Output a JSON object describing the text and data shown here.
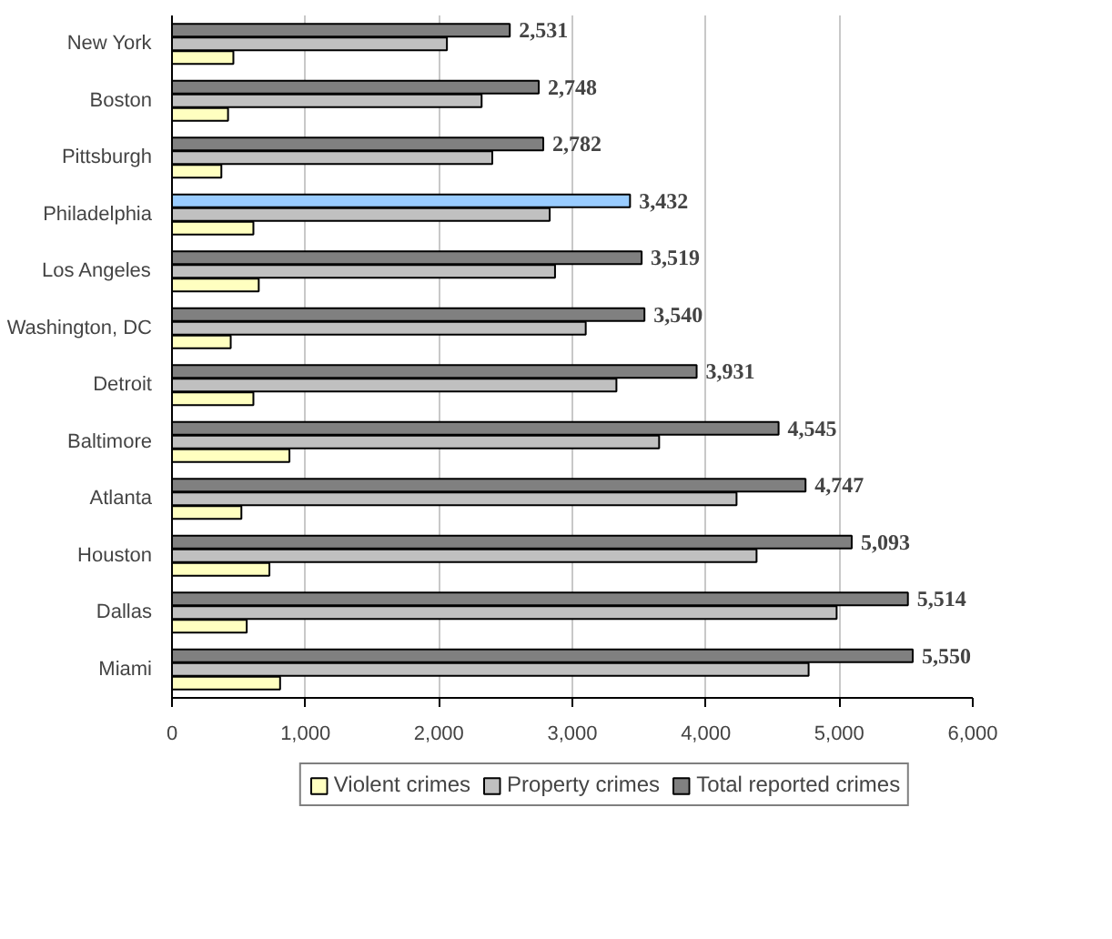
{
  "chart_data": {
    "type": "bar",
    "orientation": "horizontal",
    "categories": [
      "New York",
      "Boston",
      "Pittsburgh",
      "Philadelphia",
      "Los Angeles",
      "Washington, DC",
      "Detroit",
      "Baltimore",
      "Atlanta",
      "Houston",
      "Dallas",
      "Miami"
    ],
    "series": [
      {
        "name": "Violent crimes",
        "color": "#ffffc0",
        "values": [
          460,
          420,
          370,
          610,
          650,
          440,
          610,
          880,
          520,
          730,
          560,
          810
        ]
      },
      {
        "name": "Property crimes",
        "color": "#c0c0c0",
        "values": [
          2060,
          2320,
          2400,
          2830,
          2870,
          3100,
          3330,
          3650,
          4230,
          4380,
          4980,
          4770
        ]
      },
      {
        "name": "Total reported crimes",
        "color": "#808080",
        "colors": [
          "#808080",
          "#808080",
          "#808080",
          "#99ccff",
          "#808080",
          "#808080",
          "#808080",
          "#808080",
          "#808080",
          "#808080",
          "#808080",
          "#808080"
        ],
        "values": [
          2531,
          2748,
          2782,
          3432,
          3519,
          3540,
          3931,
          4545,
          4747,
          5093,
          5514,
          5550
        ],
        "value_labels": [
          "2,531",
          "2,748",
          "2,782",
          "3,432",
          "3,519",
          "3,540",
          "3,931",
          "4,545",
          "4,747",
          "5,093",
          "5,514",
          "5,550"
        ]
      }
    ],
    "xlim": [
      0,
      6000
    ],
    "xticks": [
      0,
      {
        "value": 1000,
        "label": "1,000"
      },
      {
        "value": 2000,
        "label": "2,000"
      },
      {
        "value": 3000,
        "label": "3,000"
      },
      {
        "value": 4000,
        "label": "4,000"
      },
      {
        "value": 5000,
        "label": "5,000"
      },
      {
        "value": 6000,
        "label": "6,000"
      }
    ],
    "grid": "x",
    "legend": "bottom"
  }
}
